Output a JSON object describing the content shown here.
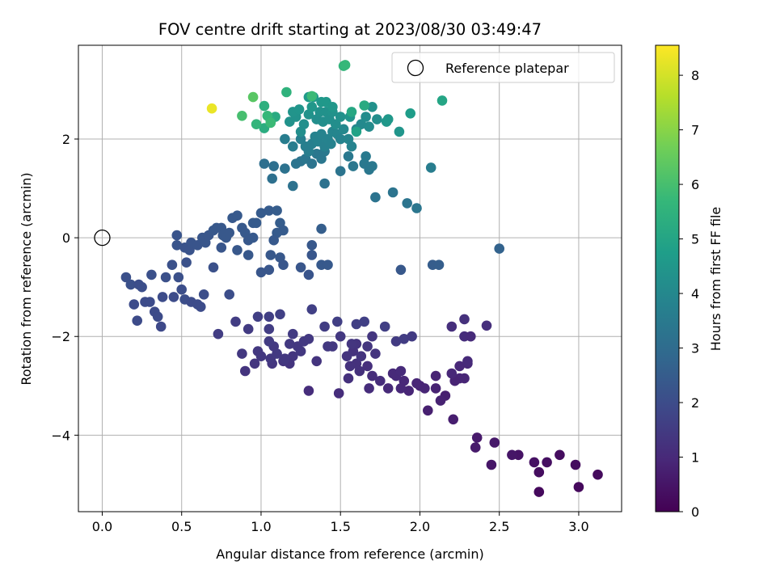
{
  "chart_data": {
    "type": "scatter",
    "title": "FOV centre drift starting at 2023/08/30 03:49:47",
    "xlabel": "Angular distance from reference (arcmin)",
    "ylabel": "Rotation from reference (arcmin)",
    "xlim": [
      -0.15,
      3.27
    ],
    "ylim": [
      -5.55,
      3.9
    ],
    "xticks": [
      0.0,
      0.5,
      1.0,
      1.5,
      2.0,
      2.5,
      3.0
    ],
    "xtick_labels": [
      "0.0",
      "0.5",
      "1.0",
      "1.5",
      "2.0",
      "2.5",
      "3.0"
    ],
    "yticks": [
      -4,
      -2,
      0,
      2
    ],
    "ytick_labels": [
      "−4",
      "−2",
      "0",
      "2"
    ],
    "grid": true,
    "legend": {
      "placement": "top-right",
      "entries": [
        "Reference platepar"
      ]
    },
    "reference_point": {
      "x": 0,
      "y": 0,
      "marker": "open-circle"
    },
    "colorbar": {
      "label": "Hours from first FF file",
      "range": [
        0,
        8.55
      ],
      "ticks": [
        0,
        1,
        2,
        3,
        4,
        5,
        6,
        7,
        8
      ],
      "tick_labels": [
        "0",
        "1",
        "2",
        "3",
        "4",
        "5",
        "6",
        "7",
        "8"
      ],
      "colormap": "viridis",
      "colors": [
        "#440154",
        "#482878",
        "#3e4989",
        "#31688e",
        "#26828e",
        "#1f9e89",
        "#35b779",
        "#6ece58",
        "#b5de2b",
        "#fde725"
      ]
    },
    "points": [
      [
        2.75,
        -5.15,
        0.2
      ],
      [
        3.0,
        -5.05,
        0.2
      ],
      [
        3.12,
        -4.8,
        0.25
      ],
      [
        2.98,
        -4.6,
        0.3
      ],
      [
        2.88,
        -4.4,
        0.3
      ],
      [
        2.8,
        -4.55,
        0.35
      ],
      [
        2.75,
        -4.75,
        0.3
      ],
      [
        2.72,
        -4.55,
        0.4
      ],
      [
        2.62,
        -4.4,
        0.45
      ],
      [
        2.58,
        -4.4,
        0.5
      ],
      [
        2.45,
        -4.6,
        0.5
      ],
      [
        2.47,
        -4.15,
        0.55
      ],
      [
        2.35,
        -4.25,
        0.6
      ],
      [
        2.36,
        -4.05,
        0.6
      ],
      [
        2.21,
        -3.68,
        0.7
      ],
      [
        2.16,
        -3.2,
        0.75
      ],
      [
        2.13,
        -3.3,
        0.8
      ],
      [
        2.05,
        -3.5,
        0.75
      ],
      [
        2.1,
        -3.05,
        0.8
      ],
      [
        2.1,
        -2.8,
        0.85
      ],
      [
        2.0,
        -3.0,
        0.85
      ],
      [
        1.98,
        -2.95,
        0.9
      ],
      [
        1.93,
        -3.1,
        0.9
      ],
      [
        1.9,
        -2.9,
        0.95
      ],
      [
        1.88,
        -3.05,
        0.95
      ],
      [
        1.85,
        -2.8,
        1.0
      ],
      [
        1.83,
        -2.75,
        1.0
      ],
      [
        1.88,
        -2.7,
        1.05
      ],
      [
        1.8,
        -3.05,
        1.0
      ],
      [
        1.75,
        -2.9,
        1.1
      ],
      [
        1.7,
        -2.8,
        1.1
      ],
      [
        1.67,
        -2.6,
        1.15
      ],
      [
        1.68,
        -3.05,
        1.1
      ],
      [
        1.62,
        -2.7,
        1.2
      ],
      [
        1.6,
        -2.55,
        1.2
      ],
      [
        1.58,
        -2.3,
        1.25
      ],
      [
        1.55,
        -2.85,
        1.2
      ],
      [
        1.56,
        -2.6,
        1.25
      ],
      [
        1.6,
        -2.15,
        1.3
      ],
      [
        1.63,
        -2.4,
        1.3
      ],
      [
        1.67,
        -2.2,
        1.35
      ],
      [
        1.7,
        -2.0,
        1.35
      ],
      [
        1.72,
        -2.35,
        1.3
      ],
      [
        1.54,
        -2.4,
        1.3
      ],
      [
        1.57,
        -2.15,
        1.35
      ],
      [
        1.5,
        -2.0,
        1.4
      ],
      [
        1.45,
        -2.2,
        1.4
      ],
      [
        1.42,
        -2.2,
        1.45
      ],
      [
        1.49,
        -3.15,
        1.1
      ],
      [
        1.3,
        -3.1,
        1.1
      ],
      [
        1.35,
        -2.5,
        1.3
      ],
      [
        1.2,
        -2.4,
        1.35
      ],
      [
        1.18,
        -2.55,
        1.3
      ],
      [
        1.23,
        -2.2,
        1.4
      ],
      [
        1.25,
        -2.3,
        1.4
      ],
      [
        1.27,
        -2.1,
        1.45
      ],
      [
        1.3,
        -2.05,
        1.45
      ],
      [
        1.2,
        -1.95,
        1.5
      ],
      [
        1.18,
        -2.15,
        1.45
      ],
      [
        1.14,
        -2.5,
        1.35
      ],
      [
        1.07,
        -2.55,
        1.35
      ],
      [
        1.06,
        -2.45,
        1.4
      ],
      [
        1.08,
        -2.2,
        1.45
      ],
      [
        1.05,
        -2.1,
        1.5
      ],
      [
        1.05,
        -1.85,
        1.55
      ],
      [
        1.05,
        -1.6,
        1.6
      ],
      [
        1.12,
        -1.55,
        1.65
      ],
      [
        0.98,
        -2.3,
        1.4
      ],
      [
        0.96,
        -2.55,
        1.35
      ],
      [
        0.88,
        -2.35,
        1.4
      ],
      [
        0.9,
        -2.7,
        1.3
      ],
      [
        0.92,
        -1.85,
        1.5
      ],
      [
        0.84,
        -1.7,
        1.55
      ],
      [
        0.98,
        -1.6,
        1.6
      ],
      [
        0.73,
        -1.95,
        1.55
      ],
      [
        1.0,
        -2.4,
        1.4
      ],
      [
        1.1,
        -2.35,
        1.45
      ],
      [
        1.15,
        -2.45,
        1.4
      ],
      [
        1.32,
        -1.45,
        1.65
      ],
      [
        1.4,
        -1.8,
        1.55
      ],
      [
        1.48,
        -1.7,
        1.6
      ],
      [
        1.6,
        -1.75,
        1.6
      ],
      [
        1.65,
        -1.7,
        1.65
      ],
      [
        1.78,
        -1.8,
        1.6
      ],
      [
        1.85,
        -2.1,
        1.5
      ],
      [
        1.9,
        -2.05,
        1.55
      ],
      [
        1.95,
        -2.0,
        1.5
      ],
      [
        2.03,
        -3.05,
        0.9
      ],
      [
        2.25,
        -2.85,
        0.9
      ],
      [
        2.22,
        -2.9,
        0.85
      ],
      [
        2.28,
        -2.85,
        0.9
      ],
      [
        2.25,
        -2.6,
        0.95
      ],
      [
        2.3,
        -2.55,
        0.95
      ],
      [
        2.3,
        -2.5,
        1.0
      ],
      [
        2.28,
        -2.0,
        1.1
      ],
      [
        2.32,
        -2.0,
        1.05
      ],
      [
        2.28,
        -1.65,
        1.2
      ],
      [
        2.42,
        -1.78,
        1.15
      ],
      [
        2.2,
        -1.8,
        1.15
      ],
      [
        2.2,
        -2.75,
        0.95
      ],
      [
        0.15,
        -0.8,
        2.1
      ],
      [
        0.18,
        -0.95,
        2.1
      ],
      [
        0.2,
        -1.35,
        2.0
      ],
      [
        0.22,
        -1.68,
        1.95
      ],
      [
        0.23,
        -0.95,
        2.05
      ],
      [
        0.25,
        -1.0,
        2.05
      ],
      [
        0.27,
        -1.3,
        2.0
      ],
      [
        0.3,
        -1.3,
        2.0
      ],
      [
        0.31,
        -0.75,
        2.1
      ],
      [
        0.33,
        -1.5,
        1.95
      ],
      [
        0.35,
        -1.6,
        1.95
      ],
      [
        0.37,
        -1.8,
        1.9
      ],
      [
        0.38,
        -1.2,
        2.0
      ],
      [
        0.4,
        -0.8,
        2.1
      ],
      [
        0.44,
        -0.55,
        2.15
      ],
      [
        0.45,
        -1.2,
        2.0
      ],
      [
        0.48,
        -0.8,
        2.1
      ],
      [
        0.5,
        -1.05,
        2.05
      ],
      [
        0.52,
        -1.25,
        2.05
      ],
      [
        0.53,
        -0.5,
        2.15
      ],
      [
        0.56,
        -1.3,
        2.0
      ],
      [
        0.6,
        -1.35,
        2.0
      ],
      [
        0.62,
        -1.4,
        2.0
      ],
      [
        0.64,
        -1.15,
        2.05
      ],
      [
        0.7,
        -0.6,
        2.15
      ],
      [
        0.8,
        -1.15,
        2.05
      ],
      [
        0.47,
        0.05,
        2.25
      ],
      [
        0.47,
        -0.15,
        2.25
      ],
      [
        0.52,
        -0.2,
        2.2
      ],
      [
        0.55,
        -0.25,
        2.2
      ],
      [
        0.56,
        -0.1,
        2.25
      ],
      [
        0.6,
        -0.15,
        2.25
      ],
      [
        0.63,
        0.0,
        2.3
      ],
      [
        0.65,
        -0.1,
        2.3
      ],
      [
        0.67,
        0.05,
        2.3
      ],
      [
        0.7,
        0.15,
        2.35
      ],
      [
        0.72,
        0.2,
        2.35
      ],
      [
        0.75,
        0.2,
        2.35
      ],
      [
        0.76,
        0.05,
        2.35
      ],
      [
        0.78,
        0.0,
        2.35
      ],
      [
        0.75,
        -0.2,
        2.3
      ],
      [
        0.8,
        0.1,
        2.35
      ],
      [
        0.82,
        0.4,
        2.4
      ],
      [
        0.85,
        0.45,
        2.4
      ],
      [
        0.88,
        0.2,
        2.4
      ],
      [
        0.9,
        0.1,
        2.4
      ],
      [
        0.92,
        -0.05,
        2.35
      ],
      [
        0.95,
        0.3,
        2.45
      ],
      [
        0.97,
        0.3,
        2.45
      ],
      [
        1.0,
        0.5,
        2.45
      ],
      [
        1.05,
        0.55,
        2.45
      ],
      [
        1.1,
        0.55,
        2.5
      ],
      [
        1.12,
        0.3,
        2.5
      ],
      [
        1.14,
        0.15,
        2.45
      ],
      [
        1.1,
        0.1,
        2.45
      ],
      [
        1.08,
        -0.05,
        2.4
      ],
      [
        1.06,
        -0.35,
        2.35
      ],
      [
        1.12,
        -0.4,
        2.35
      ],
      [
        1.14,
        -0.55,
        2.3
      ],
      [
        1.05,
        -0.65,
        2.3
      ],
      [
        1.0,
        -0.7,
        2.3
      ],
      [
        0.92,
        -0.35,
        2.35
      ],
      [
        0.85,
        -0.25,
        2.35
      ],
      [
        0.95,
        0.0,
        2.4
      ],
      [
        1.25,
        -0.6,
        2.3
      ],
      [
        1.3,
        -0.75,
        2.25
      ],
      [
        1.32,
        -0.35,
        2.3
      ],
      [
        1.32,
        -0.15,
        2.35
      ],
      [
        1.38,
        0.18,
        2.55
      ],
      [
        1.38,
        -0.55,
        2.4
      ],
      [
        1.42,
        -0.55,
        2.4
      ],
      [
        1.88,
        -0.65,
        2.35
      ],
      [
        2.08,
        -0.55,
        2.5
      ],
      [
        2.12,
        -0.55,
        2.55
      ],
      [
        2.5,
        -0.22,
        2.7
      ],
      [
        1.02,
        1.5,
        3.1
      ],
      [
        1.08,
        1.45,
        3.1
      ],
      [
        1.07,
        1.2,
        3.15
      ],
      [
        1.2,
        1.05,
        3.2
      ],
      [
        1.15,
        1.4,
        3.2
      ],
      [
        1.22,
        1.5,
        3.3
      ],
      [
        1.25,
        1.55,
        3.3
      ],
      [
        1.28,
        1.6,
        3.35
      ],
      [
        1.32,
        1.5,
        3.3
      ],
      [
        1.35,
        1.7,
        3.4
      ],
      [
        1.38,
        1.6,
        3.4
      ],
      [
        1.4,
        1.75,
        3.45
      ],
      [
        1.4,
        1.1,
        3.2
      ],
      [
        1.5,
        1.35,
        3.3
      ],
      [
        1.55,
        1.65,
        3.45
      ],
      [
        1.58,
        1.45,
        3.4
      ],
      [
        1.65,
        1.5,
        3.45
      ],
      [
        1.66,
        1.65,
        3.5
      ],
      [
        1.68,
        1.38,
        3.4
      ],
      [
        1.7,
        1.45,
        3.45
      ],
      [
        1.72,
        0.82,
        3.25
      ],
      [
        1.83,
        0.92,
        3.3
      ],
      [
        1.92,
        0.7,
        3.3
      ],
      [
        1.98,
        0.6,
        3.35
      ],
      [
        2.07,
        1.42,
        3.6
      ],
      [
        1.15,
        2.0,
        3.6
      ],
      [
        1.2,
        1.85,
        3.6
      ],
      [
        1.25,
        2.0,
        3.7
      ],
      [
        1.28,
        1.85,
        3.7
      ],
      [
        1.3,
        1.75,
        3.65
      ],
      [
        1.32,
        1.9,
        3.7
      ],
      [
        1.34,
        2.05,
        3.8
      ],
      [
        1.36,
        1.95,
        3.8
      ],
      [
        1.38,
        2.1,
        3.85
      ],
      [
        1.4,
        1.85,
        3.75
      ],
      [
        1.42,
        2.0,
        3.85
      ],
      [
        1.44,
        1.9,
        3.8
      ],
      [
        1.45,
        2.15,
        3.9
      ],
      [
        1.48,
        2.1,
        3.9
      ],
      [
        1.5,
        2.0,
        3.85
      ],
      [
        1.52,
        2.2,
        4.0
      ],
      [
        1.55,
        2.0,
        3.9
      ],
      [
        1.57,
        1.85,
        3.85
      ],
      [
        1.6,
        2.2,
        4.0
      ],
      [
        1.63,
        2.3,
        4.05
      ],
      [
        1.66,
        2.45,
        4.15
      ],
      [
        1.68,
        2.25,
        4.1
      ],
      [
        1.7,
        2.65,
        4.3
      ],
      [
        1.73,
        2.4,
        4.2
      ],
      [
        1.35,
        2.4,
        4.2
      ],
      [
        1.37,
        2.55,
        4.3
      ],
      [
        1.39,
        2.35,
        4.2
      ],
      [
        1.41,
        2.55,
        4.3
      ],
      [
        1.43,
        2.4,
        4.25
      ],
      [
        1.45,
        2.55,
        4.35
      ],
      [
        1.47,
        2.3,
        4.2
      ],
      [
        1.5,
        2.45,
        4.3
      ],
      [
        1.3,
        2.5,
        4.35
      ],
      [
        1.27,
        2.3,
        4.25
      ],
      [
        1.25,
        2.15,
        4.2
      ],
      [
        1.22,
        2.45,
        4.35
      ],
      [
        1.2,
        2.55,
        4.4
      ],
      [
        1.18,
        2.35,
        4.35
      ],
      [
        1.24,
        2.6,
        4.45
      ],
      [
        1.32,
        2.65,
        4.5
      ],
      [
        1.33,
        2.85,
        4.6
      ],
      [
        1.3,
        2.85,
        4.6
      ],
      [
        1.38,
        2.75,
        4.55
      ],
      [
        1.41,
        2.75,
        4.55
      ],
      [
        1.45,
        2.65,
        4.5
      ],
      [
        1.56,
        2.45,
        4.45
      ],
      [
        1.79,
        2.35,
        4.5
      ],
      [
        1.8,
        2.4,
        4.55
      ],
      [
        1.87,
        2.15,
        4.45
      ],
      [
        1.94,
        2.52,
        4.7
      ],
      [
        2.14,
        2.78,
        5.0
      ],
      [
        1.52,
        3.48,
        5.6
      ],
      [
        1.53,
        3.5,
        5.7
      ],
      [
        1.65,
        2.68,
        5.2
      ],
      [
        1.57,
        2.55,
        5.1
      ],
      [
        1.6,
        2.15,
        4.9
      ],
      [
        1.09,
        2.45,
        5.2
      ],
      [
        1.06,
        2.37,
        5.3
      ],
      [
        1.02,
        2.22,
        5.3
      ],
      [
        1.02,
        2.67,
        5.4
      ],
      [
        1.16,
        2.95,
        5.5
      ],
      [
        0.97,
        2.3,
        5.6
      ],
      [
        1.04,
        2.47,
        5.7
      ],
      [
        1.06,
        2.33,
        5.8
      ],
      [
        0.88,
        2.47,
        6.0
      ],
      [
        0.95,
        2.85,
        6.3
      ],
      [
        1.32,
        2.87,
        5.8
      ],
      [
        0.69,
        2.62,
        8.3
      ]
    ]
  }
}
